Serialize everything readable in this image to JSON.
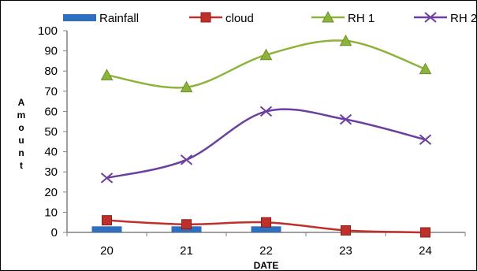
{
  "chart_data": {
    "type": "line",
    "title": "",
    "xlabel": "DATE",
    "ylabel": "Amount",
    "categories": [
      "20",
      "21",
      "22",
      "23",
      "24"
    ],
    "ylim": [
      0,
      100
    ],
    "yticks": [
      0,
      10,
      20,
      30,
      40,
      50,
      60,
      70,
      80,
      90,
      100
    ],
    "grid": false,
    "legend_position": "top",
    "series": [
      {
        "name": "Rainfall",
        "kind": "bar",
        "color": "#2f6fc0",
        "values": [
          3,
          3,
          3,
          0,
          0
        ]
      },
      {
        "name": "cloud",
        "kind": "line",
        "marker": "square",
        "color": "#c0302b",
        "values": [
          6,
          4,
          5,
          1,
          0
        ]
      },
      {
        "name": "RH 1",
        "kind": "line",
        "marker": "triangle",
        "color": "#8cb33a",
        "values": [
          78,
          72,
          88,
          95,
          81
        ]
      },
      {
        "name": "RH 2",
        "kind": "line",
        "marker": "x",
        "color": "#6b3fa0",
        "values": [
          27,
          36,
          60,
          56,
          46
        ]
      }
    ]
  }
}
